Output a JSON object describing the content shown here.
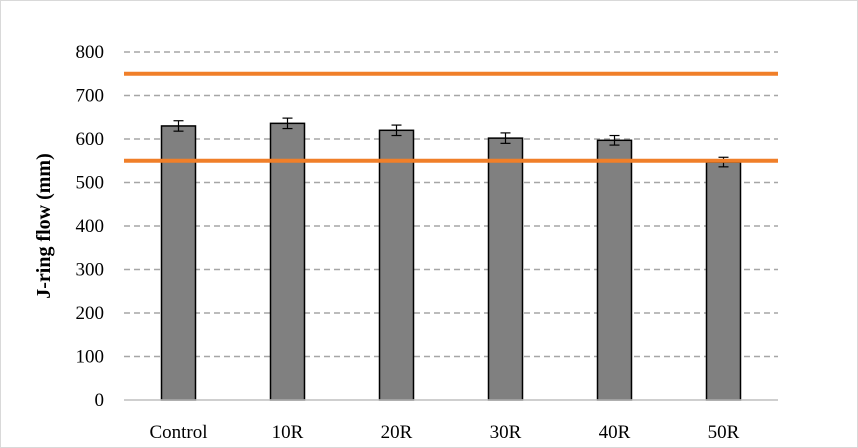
{
  "chart_data": {
    "type": "bar",
    "title": "",
    "xlabel": "",
    "ylabel": "J-ring flow (mm)",
    "categories": [
      "Control",
      "10R",
      "20R",
      "30R",
      "40R",
      "50R"
    ],
    "values": [
      630,
      636,
      620,
      602,
      597,
      547
    ],
    "errors": [
      12,
      12,
      12,
      12,
      11,
      11
    ],
    "ylim": [
      0,
      800
    ],
    "yticks": [
      0,
      100,
      200,
      300,
      400,
      500,
      600,
      700,
      800
    ],
    "grid": "dashed horizontal",
    "limits": [
      550,
      750
    ],
    "colors": {
      "bar": "#808080",
      "bar_edge": "#000000",
      "limit_line": "#f07f29",
      "grid": "#a6a6a6"
    }
  }
}
